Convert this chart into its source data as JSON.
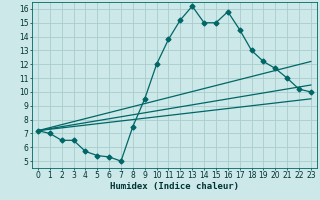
{
  "title": "",
  "xlabel": "Humidex (Indice chaleur)",
  "background_color": "#cce8e8",
  "grid_color": "#aacccc",
  "line_color": "#006666",
  "xlim": [
    -0.5,
    23.5
  ],
  "ylim": [
    4.5,
    16.5
  ],
  "yticks": [
    5,
    6,
    7,
    8,
    9,
    10,
    11,
    12,
    13,
    14,
    15,
    16
  ],
  "xticks": [
    0,
    1,
    2,
    3,
    4,
    5,
    6,
    7,
    8,
    9,
    10,
    11,
    12,
    13,
    14,
    15,
    16,
    17,
    18,
    19,
    20,
    21,
    22,
    23
  ],
  "line1_x": [
    0,
    1,
    2,
    3,
    4,
    5,
    6,
    7,
    8,
    9,
    10,
    11,
    12,
    13,
    14,
    15,
    16,
    17,
    18,
    19,
    20,
    21,
    22,
    23
  ],
  "line1_y": [
    7.2,
    7.0,
    6.5,
    6.5,
    5.7,
    5.4,
    5.3,
    5.0,
    7.5,
    9.5,
    12.0,
    13.8,
    15.2,
    16.2,
    15.0,
    15.0,
    15.8,
    14.5,
    13.0,
    12.2,
    11.7,
    11.0,
    10.2,
    10.0
  ],
  "line2_x": [
    0,
    23
  ],
  "line2_y": [
    7.2,
    12.2
  ],
  "line3_x": [
    0,
    23
  ],
  "line3_y": [
    7.2,
    10.5
  ],
  "line4_x": [
    0,
    23
  ],
  "line4_y": [
    7.2,
    9.5
  ],
  "markersize": 2.5,
  "linewidth": 0.9,
  "fontsize_axis": 6.5,
  "fontsize_ticks": 5.5
}
